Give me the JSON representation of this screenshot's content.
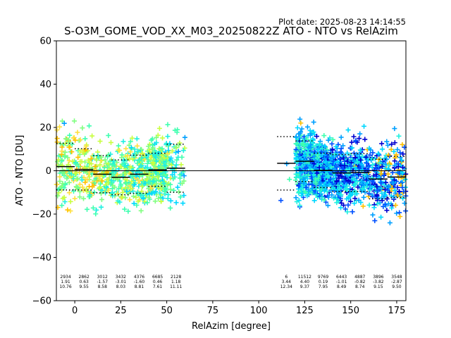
{
  "chart_data": {
    "type": "scatter",
    "plot_date": "Plot date: 2025-08-23 14:14:55",
    "title": "S-O3M_GOME_VOD_XX_M03_20250822Z ATO - NTO vs RelAzim",
    "xlabel": "RelAzim [degree]",
    "ylabel": "ATO - NTO [DU]",
    "xlim": [
      -10,
      180
    ],
    "ylim": [
      -60,
      60
    ],
    "xticks": [
      "0",
      "25",
      "50",
      "75",
      "100",
      "125",
      "150",
      "175"
    ],
    "yticks": [
      "−60",
      "−40",
      "−20",
      "0",
      "20",
      "40",
      "60"
    ],
    "zero_line": 0,
    "marker": "+",
    "colors": [
      "#ffc000",
      "#ffe040",
      "#c8ff40",
      "#80ff80",
      "#40ffb0",
      "#20f0e0",
      "#00d8ff",
      "#00a0ff",
      "#0050ff",
      "#0000d0"
    ],
    "bins": [
      {
        "x0": -10,
        "x1": 0,
        "count": "2934",
        "mean": "1.91",
        "std": "10.76",
        "lo": -31,
        "hi": 32
      },
      {
        "x0": 0,
        "x1": 10,
        "count": "2862",
        "mean": "0.63",
        "std": "9.55",
        "lo": -29,
        "hi": 30
      },
      {
        "x0": 10,
        "x1": 20,
        "count": "3012",
        "mean": "-1.57",
        "std": "8.58",
        "lo": -27,
        "hi": 24
      },
      {
        "x0": 20,
        "x1": 30,
        "count": "3432",
        "mean": "-3.01",
        "std": "8.03",
        "lo": -27,
        "hi": 22
      },
      {
        "x0": 30,
        "x1": 40,
        "count": "4376",
        "mean": "-1.60",
        "std": "8.81",
        "lo": -28,
        "hi": 23
      },
      {
        "x0": 40,
        "x1": 50,
        "count": "6685",
        "mean": "0.46",
        "std": "7.61",
        "lo": -26,
        "hi": 24
      },
      {
        "x0": 50,
        "x1": 60,
        "count": "2128",
        "mean": "1.18",
        "std": "11.11",
        "lo": -52,
        "hi": 40
      },
      {
        "x0": 110,
        "x1": 120,
        "count": "6",
        "mean": "3.44",
        "std": "12.34",
        "lo": -20,
        "hi": 21
      },
      {
        "x0": 120,
        "x1": 130,
        "count": "11512",
        "mean": "4.40",
        "std": "9.37",
        "lo": -30,
        "hi": 42
      },
      {
        "x0": 130,
        "x1": 140,
        "count": "9769",
        "mean": "0.19",
        "std": "7.95",
        "lo": -26,
        "hi": 24
      },
      {
        "x0": 140,
        "x1": 150,
        "count": "6443",
        "mean": "-1.01",
        "std": "8.49",
        "lo": -32,
        "hi": 24
      },
      {
        "x0": 150,
        "x1": 160,
        "count": "4887",
        "mean": "-0.82",
        "std": "8.74",
        "lo": -30,
        "hi": 26
      },
      {
        "x0": 160,
        "x1": 170,
        "count": "3896",
        "mean": "-3.82",
        "std": "9.15",
        "lo": -30,
        "hi": 26
      },
      {
        "x0": 170,
        "x1": 180,
        "count": "3548",
        "mean": "-2.87",
        "std": "9.50",
        "lo": -35,
        "hi": 27
      }
    ]
  }
}
